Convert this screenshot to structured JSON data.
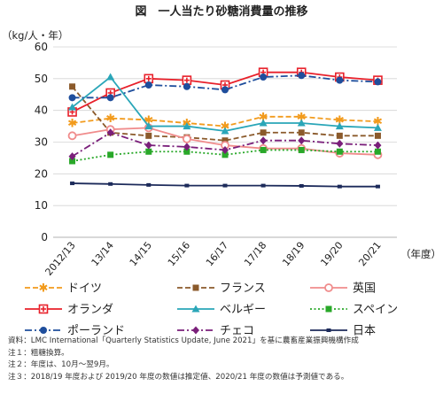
{
  "chart_data": {
    "type": "line",
    "title": "図　一人当たり砂糖消費量の推移",
    "ylabel": "（kg/人・年）",
    "xlabel": "（年度）",
    "ylim": [
      0,
      60
    ],
    "yticks": [
      0,
      10,
      20,
      30,
      40,
      50,
      60
    ],
    "grid": true,
    "legend_position": "bottom",
    "categories": [
      "2012/13",
      "13/14",
      "14/15",
      "15/16",
      "16/17",
      "17/18",
      "18/19",
      "19/20",
      "20/21"
    ],
    "series": [
      {
        "name": "ドイツ",
        "color": "#f29b1d",
        "marker": "star",
        "dash": "dash",
        "values": [
          36,
          37.5,
          37,
          36,
          35,
          38,
          38,
          37,
          36.5
        ]
      },
      {
        "name": "フランス",
        "color": "#8b5a2b",
        "marker": "square",
        "dash": "dash",
        "values": [
          47.5,
          33,
          32,
          31.5,
          30.5,
          33,
          33,
          32,
          32
        ]
      },
      {
        "name": "英国",
        "color": "#f08c8c",
        "marker": "circle-open",
        "dash": "solid",
        "values": [
          32,
          34,
          34.5,
          31,
          29,
          28,
          28,
          26.5,
          26
        ]
      },
      {
        "name": "オランダ",
        "color": "#e8202a",
        "marker": "cross",
        "dash": "solid",
        "values": [
          39.5,
          45.5,
          50,
          49.5,
          48,
          52,
          52,
          50.5,
          49.5
        ]
      },
      {
        "name": "ベルギー",
        "color": "#2aa6b8",
        "marker": "triangle",
        "dash": "solid",
        "values": [
          41,
          50.5,
          35,
          35,
          33.5,
          36,
          36,
          35,
          34.5
        ]
      },
      {
        "name": "スペイン",
        "color": "#29a829",
        "marker": "square",
        "dash": "dot",
        "values": [
          24,
          26,
          27,
          27,
          26,
          27.5,
          27.5,
          27,
          27
        ]
      },
      {
        "name": "ポーランド",
        "color": "#1f4e9c",
        "marker": "circle",
        "dash": "dashdot",
        "values": [
          44,
          44,
          48,
          47.5,
          46.5,
          50.5,
          51,
          49.5,
          49
        ]
      },
      {
        "name": "チェコ",
        "color": "#7a1f7a",
        "marker": "diamond",
        "dash": "dashdot",
        "values": [
          25.5,
          33,
          29,
          28.5,
          27.5,
          30.5,
          30.5,
          29.5,
          29
        ]
      },
      {
        "name": "日本",
        "color": "#1c2a5a",
        "marker": "square-small",
        "dash": "solid",
        "values": [
          17,
          16.8,
          16.5,
          16.3,
          16.3,
          16.3,
          16.2,
          16,
          16
        ]
      }
    ]
  },
  "notes": [
    "資料：LMC International「Quarterly Statistics Update, June 2021」を基に農畜産業振興機構作成",
    "注１：粗糖換算。",
    "注２：年度は、10月～翌9月。",
    "注３：2018/19 年度および 2019/20 年度の数値は推定値、2020/21 年度の数値は予測値である。"
  ]
}
